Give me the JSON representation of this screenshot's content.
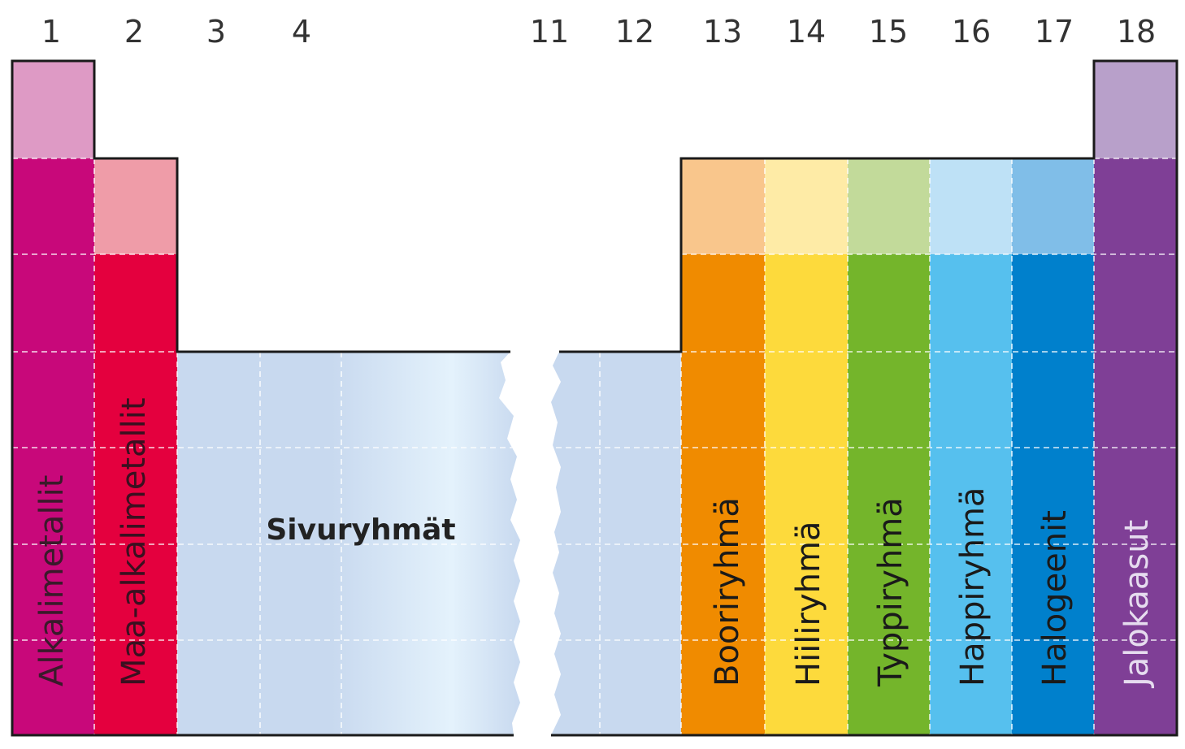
{
  "group_numbers": [
    "1",
    "2",
    "3",
    "4",
    "11",
    "12",
    "13",
    "14",
    "15",
    "16",
    "17",
    "18"
  ],
  "groups": {
    "alkali": {
      "label": "Alkalimetallit",
      "light": "#DE9AC5",
      "main": "#C8087A"
    },
    "alkaline_earth": {
      "label": "Maa-alkalimetallit",
      "light": "#EF9CA8",
      "main": "#E4003E"
    },
    "transition": {
      "label": "Sivuryhmät",
      "color": "#C8D9EF",
      "highlight": "#E4F2FC"
    },
    "boron": {
      "label": "Booriryhmä",
      "light": "#F9C68C",
      "main": "#F08B00"
    },
    "carbon": {
      "label": "Hiiliryhmä",
      "light": "#FEEBA6",
      "main": "#FDDA3C"
    },
    "nitrogen": {
      "label": "Typpiryhmä",
      "light": "#C2DA9A",
      "main": "#74B52B"
    },
    "oxygen": {
      "label": "Happiryhmä",
      "light": "#BEE1F6",
      "main": "#56C0EE"
    },
    "halogen": {
      "label": "Halogeenit",
      "light": "#80BEE8",
      "main": "#0080CC"
    },
    "noble_gas": {
      "label": "Jalokaasut",
      "light": "#B8A0CA",
      "main": "#7F3F96"
    }
  }
}
